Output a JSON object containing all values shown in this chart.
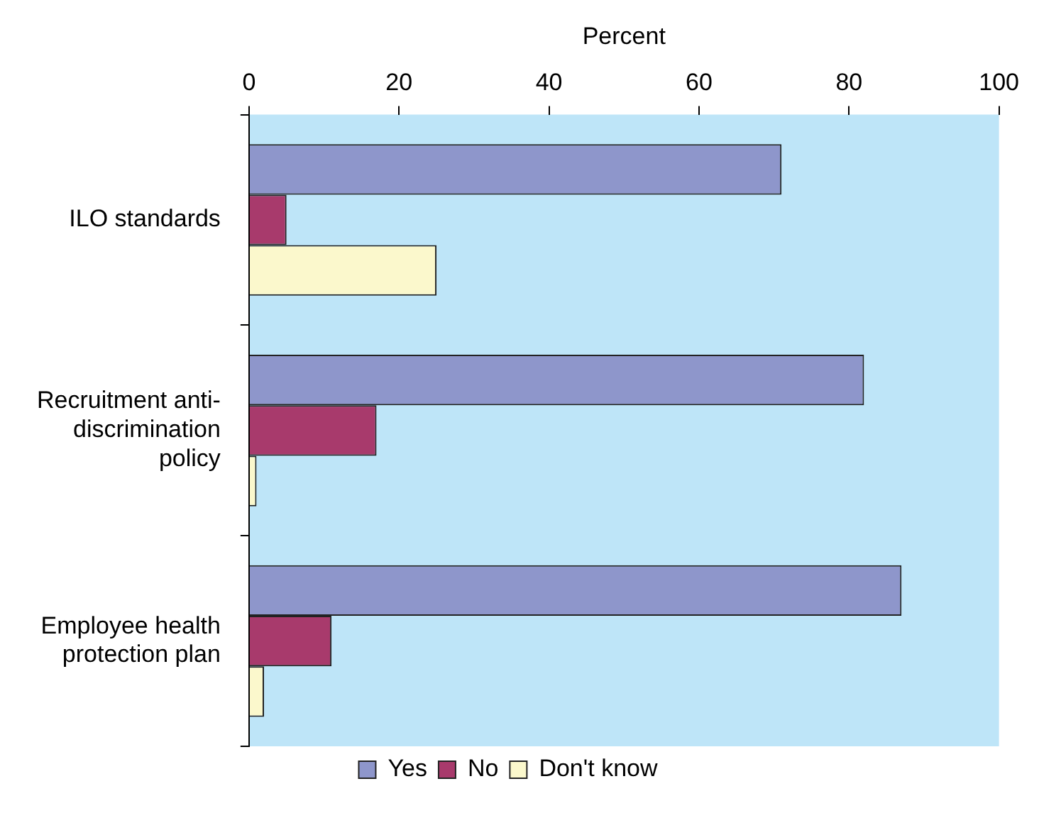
{
  "chart_data": {
    "type": "bar",
    "orientation": "horizontal",
    "xlabel": "Percent",
    "categories": [
      "ILO standards",
      "Recruitment anti-discrimination policy",
      "Employee health protection plan"
    ],
    "series": [
      {
        "name": "Yes",
        "color": "#8e96cb",
        "values": [
          71,
          82,
          87
        ]
      },
      {
        "name": "No",
        "color": "#a83a6c",
        "values": [
          5,
          17,
          11
        ]
      },
      {
        "name": "Don't know",
        "color": "#fbf8cc",
        "values": [
          25,
          1,
          2
        ]
      }
    ],
    "xlim": [
      0,
      100
    ],
    "xticks": [
      0,
      20,
      40,
      60,
      80,
      100
    ],
    "grid": false,
    "legend": "bottom"
  }
}
